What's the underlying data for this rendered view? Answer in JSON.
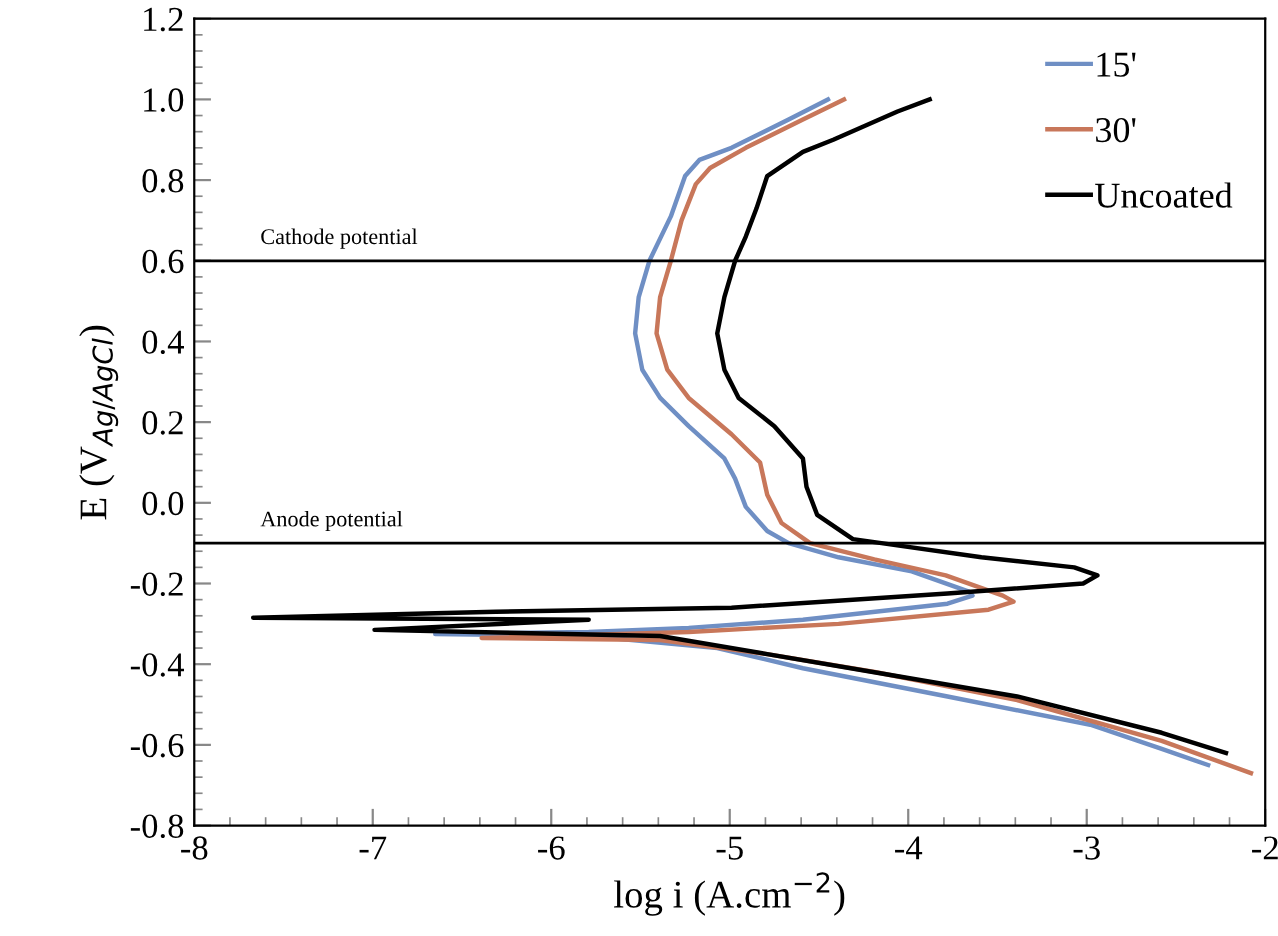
{
  "chart_data": {
    "type": "line",
    "xlabel": "log i (A.cm$^{−2}$)",
    "ylabel": "E (V$_{Ag/AgCl}$)",
    "xlim": [
      -8,
      -2
    ],
    "xticks": [
      -8,
      -7,
      -6,
      -5,
      -4,
      -3,
      -2
    ],
    "ylim": [
      -0.8,
      1.2
    ],
    "yticks": [
      {
        "value": -0.8,
        "label": "-0.8"
      },
      {
        "value": -0.6,
        "label": "-0.6"
      },
      {
        "value": -0.4,
        "label": "-0.4"
      },
      {
        "value": -0.2,
        "label": "-0.2"
      },
      {
        "value": 0,
        "label": "0.0"
      },
      {
        "value": 0.2,
        "label": "0.2"
      },
      {
        "value": 0.4,
        "label": "0.4"
      },
      {
        "value": 0.6,
        "label": "0.6"
      },
      {
        "value": 0.8,
        "label": "0.8"
      },
      {
        "value": 1.0,
        "label": "1.0"
      },
      {
        "value": 1.2,
        "label": "1.2"
      }
    ],
    "grid": false,
    "legend": "top right",
    "ref_lines": [
      {
        "axis": "y",
        "value": 0.6,
        "label": "Cathode potential",
        "color": "#000000"
      },
      {
        "axis": "y",
        "value": -0.1,
        "label": "Anode potential",
        "color": "#000000"
      }
    ],
    "series": [
      {
        "name": "15'",
        "color": "#6f8fc4",
        "x": [
          -4.45,
          -4.67,
          -4.99,
          -5.17,
          -5.25,
          -5.33,
          -5.45,
          -5.51,
          -5.53,
          -5.49,
          -5.39,
          -5.23,
          -5.03,
          -4.97,
          -4.91,
          -4.79,
          -4.67,
          -4.39,
          -3.98,
          -3.66,
          -3.64,
          -3.78,
          -4.59,
          -5.23,
          -5.79,
          -6.65,
          -5.79,
          -5.07,
          -4.59,
          -3.78,
          -2.98,
          -2.58,
          -2.32
        ],
        "values": [
          1.0,
          0.95,
          0.88,
          0.85,
          0.81,
          0.71,
          0.6,
          0.51,
          0.42,
          0.33,
          0.26,
          0.19,
          0.11,
          0.06,
          -0.01,
          -0.07,
          -0.1,
          -0.135,
          -0.17,
          -0.22,
          -0.23,
          -0.25,
          -0.29,
          -0.31,
          -0.32,
          -0.325,
          -0.33,
          -0.36,
          -0.41,
          -0.48,
          -0.55,
          -0.61,
          -0.65
        ]
      },
      {
        "name": "30'",
        "color": "#c8775a",
        "x": [
          -4.36,
          -4.59,
          -4.91,
          -5.11,
          -5.19,
          -5.27,
          -5.33,
          -5.39,
          -5.41,
          -5.35,
          -5.23,
          -4.99,
          -4.83,
          -4.79,
          -4.71,
          -4.55,
          -4.19,
          -3.79,
          -3.47,
          -3.41,
          -3.55,
          -4.39,
          -5.23,
          -6.39,
          -5.39,
          -4.79,
          -4.18,
          -3.38,
          -2.58,
          -2.08
        ],
        "values": [
          1.0,
          0.95,
          0.88,
          0.83,
          0.79,
          0.7,
          0.6,
          0.51,
          0.42,
          0.33,
          0.26,
          0.17,
          0.1,
          0.02,
          -0.05,
          -0.1,
          -0.14,
          -0.18,
          -0.23,
          -0.245,
          -0.265,
          -0.3,
          -0.32,
          -0.335,
          -0.34,
          -0.375,
          -0.42,
          -0.49,
          -0.59,
          -0.67
        ]
      },
      {
        "name": "Uncoated",
        "color": "#000000",
        "x": [
          -3.88,
          -4.06,
          -4.42,
          -4.59,
          -4.79,
          -4.85,
          -4.91,
          -4.97,
          -5.03,
          -5.07,
          -5.03,
          -4.95,
          -4.75,
          -4.59,
          -4.57,
          -4.51,
          -4.31,
          -4.15,
          -3.59,
          -3.07,
          -2.94,
          -3.02,
          -3.78,
          -4.99,
          -6.31,
          -7.67,
          -5.79,
          -6.99,
          -5.39,
          -4.79,
          -4.19,
          -3.39,
          -2.58,
          -2.22
        ],
        "values": [
          1.0,
          0.97,
          0.9,
          0.87,
          0.81,
          0.73,
          0.66,
          0.6,
          0.51,
          0.42,
          0.33,
          0.26,
          0.19,
          0.11,
          0.04,
          -0.03,
          -0.09,
          -0.1,
          -0.135,
          -0.16,
          -0.18,
          -0.2,
          -0.225,
          -0.26,
          -0.27,
          -0.285,
          -0.29,
          -0.315,
          -0.33,
          -0.375,
          -0.42,
          -0.48,
          -0.57,
          -0.62
        ]
      }
    ]
  }
}
